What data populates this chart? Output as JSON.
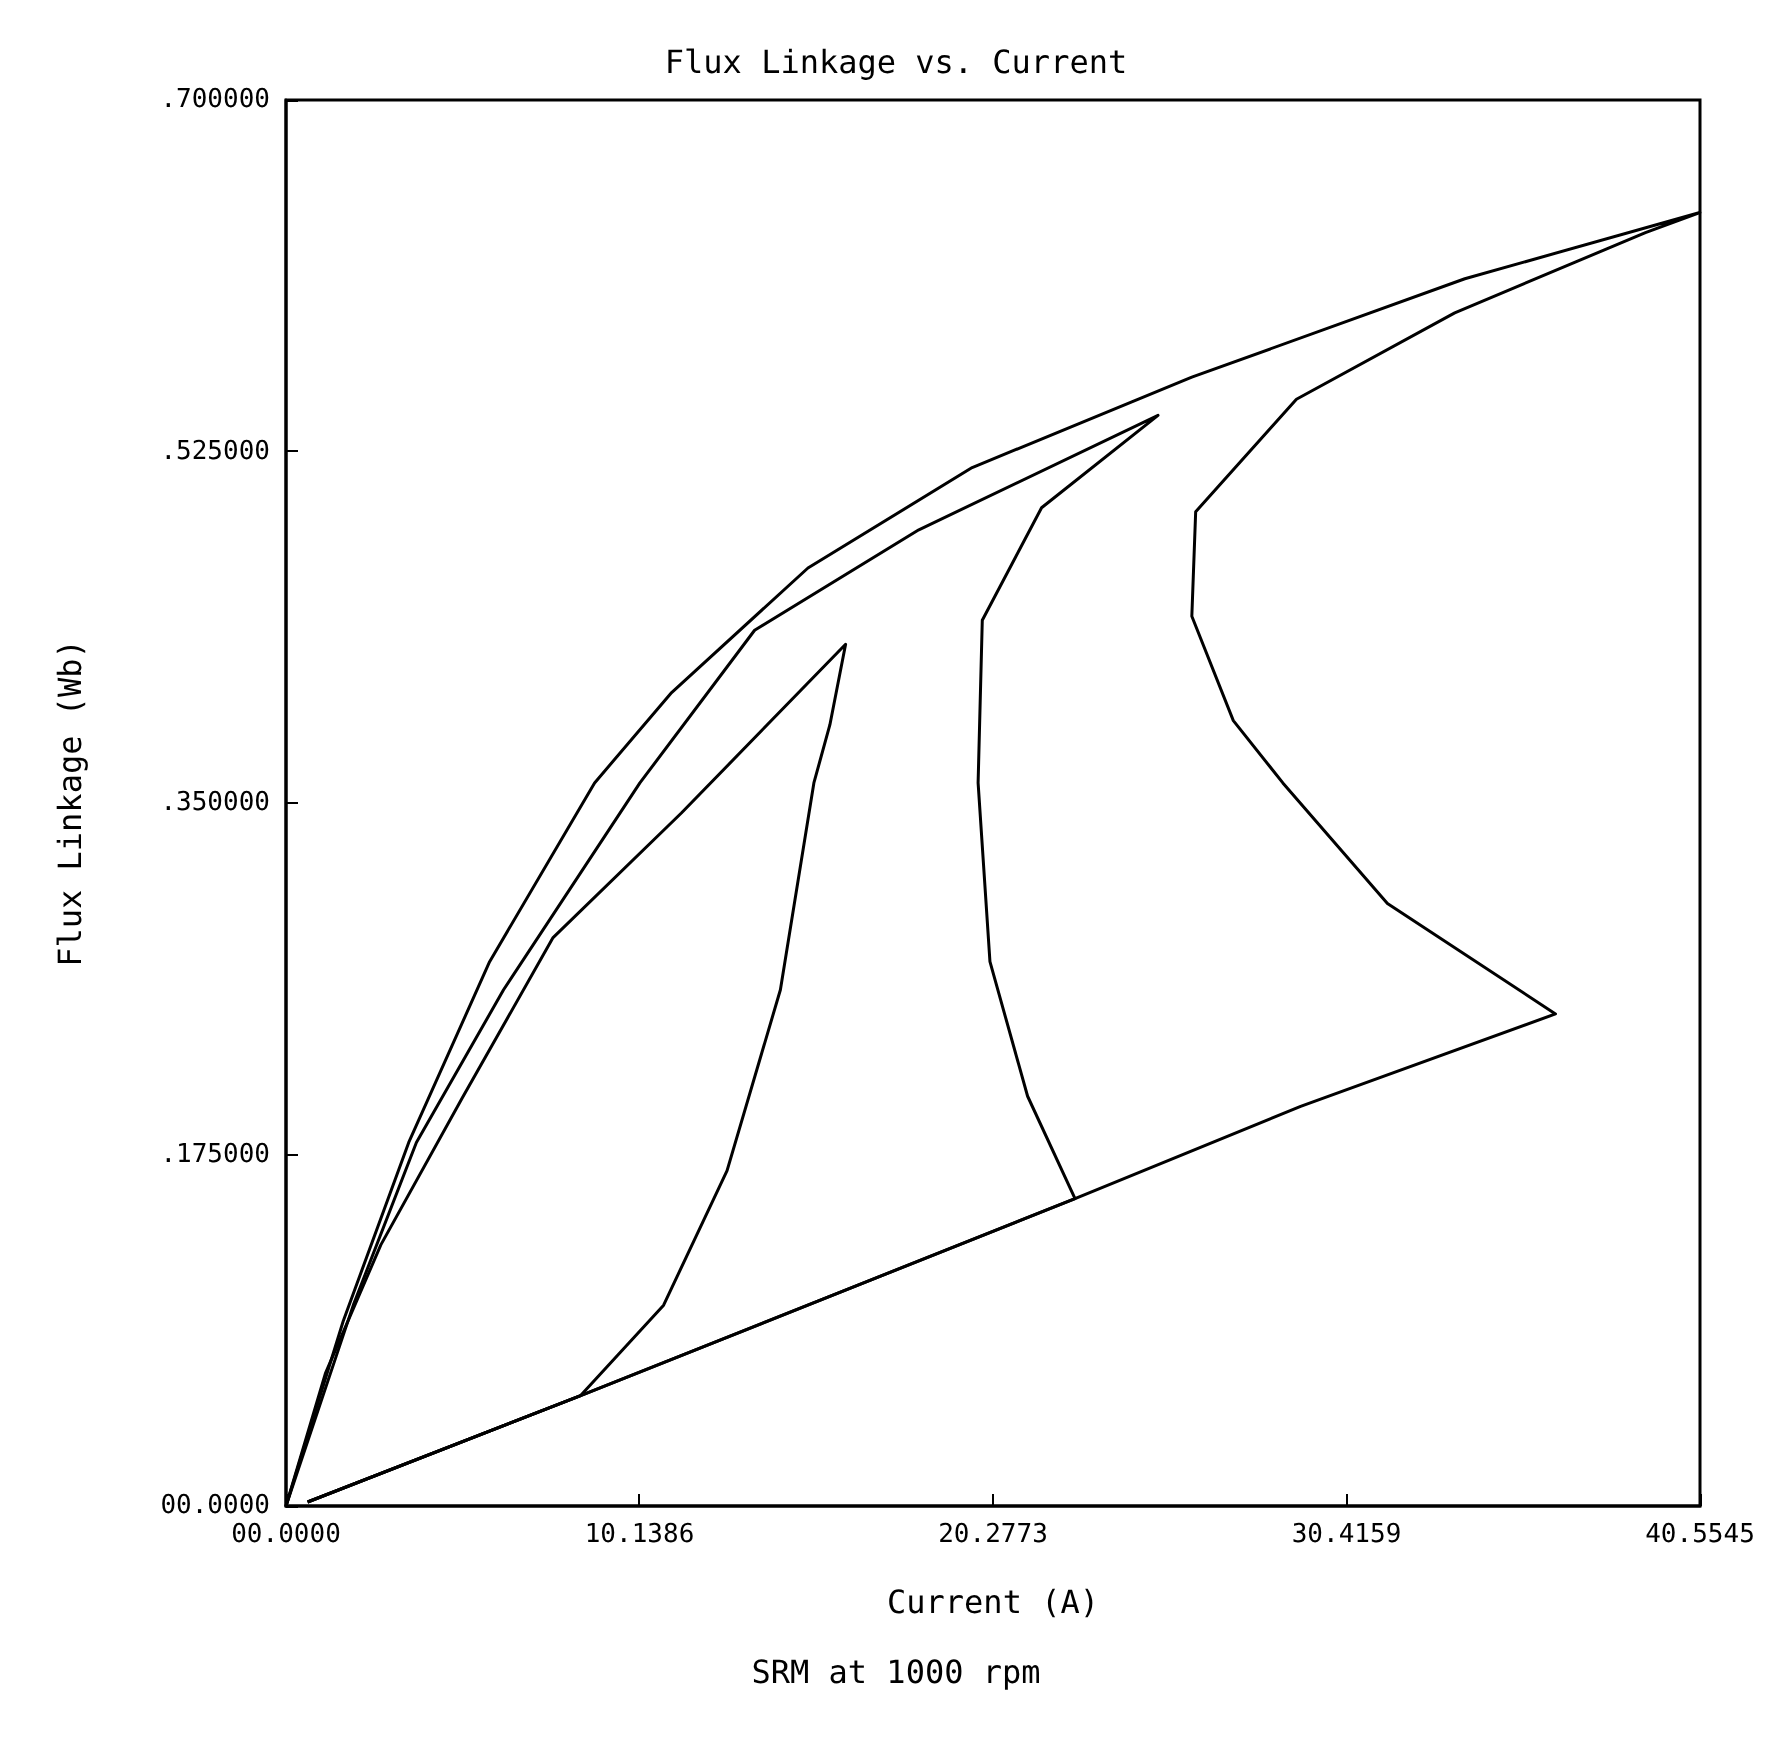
{
  "chart_data": {
    "type": "line",
    "title": "Flux Linkage vs. Current",
    "xlabel": "Current (A)",
    "subtitle": "SRM at 1000 rpm",
    "ylabel": "Flux Linkage (Wb)",
    "xlim": [
      0,
      40.5545
    ],
    "xticks": [
      {
        "value": 0,
        "label": "00.0000"
      },
      10.1386,
      20.2773,
      30.4159,
      40.5545
    ],
    "ylim": [
      0,
      0.7
    ],
    "yticks": [
      {
        "value": 0,
        "label": "00.0000"
      },
      {
        "value": 0.175,
        "label": ".175000"
      },
      {
        "value": 0.35,
        "label": ".350000"
      },
      {
        "value": 0.525,
        "label": ".525000"
      },
      {
        "value": 0.7,
        "label": ".700000"
      }
    ],
    "series": [
      {
        "color": "#000000",
        "x": [
          0,
          1.13,
          2.72,
          5.05,
          7.66,
          11.34,
          16.05,
          15.6,
          15.14,
          14.18,
          12.65,
          10.83,
          8.45,
          0.62
        ],
        "values": [
          0,
          0.066,
          0.13,
          0.203,
          0.283,
          0.345,
          0.429,
          0.389,
          0.36,
          0.257,
          0.167,
          0.1,
          0.055,
          0.002
        ]
      },
      {
        "color": "#000000",
        "x": [
          0,
          1.93,
          3.74,
          6.24,
          10.15,
          13.44,
          18.15,
          25.01,
          21.67,
          19.97,
          19.85,
          20.19,
          21.27,
          22.63,
          8.45,
          0.62
        ],
        "values": [
          0,
          0.1,
          0.181,
          0.257,
          0.36,
          0.436,
          0.486,
          0.543,
          0.497,
          0.441,
          0.36,
          0.271,
          0.204,
          0.153,
          0.055,
          0.002
        ]
      },
      {
        "color": "#000000",
        "x": [
          0,
          1.64,
          3.52,
          5.84,
          8.85,
          11.06,
          14.97,
          19.68,
          25.98,
          33.81,
          40.55,
          38.99,
          33.52,
          28.98,
          26.09,
          25.98,
          27.17,
          28.59,
          31.59,
          36.41,
          29.1,
          22.63,
          8.45,
          0.62
        ],
        "values": [
          0,
          0.092,
          0.181,
          0.271,
          0.36,
          0.405,
          0.467,
          0.517,
          0.562,
          0.611,
          0.644,
          0.634,
          0.594,
          0.551,
          0.495,
          0.443,
          0.391,
          0.36,
          0.3,
          0.245,
          0.199,
          0.153,
          0.055,
          0.002
        ]
      }
    ]
  }
}
